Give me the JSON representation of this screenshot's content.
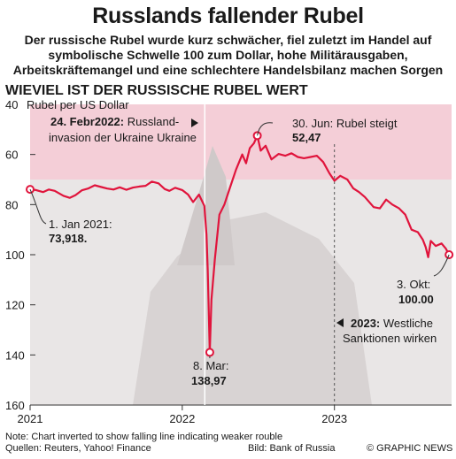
{
  "header": {
    "title": "Russlands fallender Rubel",
    "subtitle_lines": [
      "Der russische Rubel wurde kurz schwächer, fiel zuletzt im Handel auf",
      "symbolische Schwelle 100 zum Dollar, hohe Militärausgaben,",
      "Arbeitskräftemangel und eine schlechtere Handelsbilanz machen Sorgen"
    ],
    "section_label": "WIEVIEL IST DER RUSSISCHE RUBEL WERT"
  },
  "chart_data": {
    "type": "line",
    "ylabel": "Rubel per US Dollar",
    "y_inverted": true,
    "ylim": [
      40,
      160
    ],
    "y_ticks": [
      40,
      60,
      80,
      100,
      120,
      140,
      160
    ],
    "x_range": [
      "2021-01-01",
      "2023-10-09"
    ],
    "x_ticks": [
      "2021",
      "2022",
      "2023"
    ],
    "grid": false,
    "line_color": "#e0143c",
    "band_color": "#f6c9d3",
    "series": [
      {
        "points": [
          [
            "2021-01-01",
            73.9
          ],
          [
            "2021-01-15",
            74.2
          ],
          [
            "2021-02-01",
            75.0
          ],
          [
            "2021-02-15",
            74.0
          ],
          [
            "2021-03-01",
            74.5
          ],
          [
            "2021-03-22",
            76.5
          ],
          [
            "2021-04-06",
            77.3
          ],
          [
            "2021-04-20",
            76.2
          ],
          [
            "2021-05-05",
            74.3
          ],
          [
            "2021-05-20",
            73.6
          ],
          [
            "2021-06-05",
            72.3
          ],
          [
            "2021-06-21",
            73.0
          ],
          [
            "2021-07-05",
            73.6
          ],
          [
            "2021-07-20",
            74.0
          ],
          [
            "2021-08-04",
            73.1
          ],
          [
            "2021-08-20",
            74.1
          ],
          [
            "2021-09-05",
            73.2
          ],
          [
            "2021-09-20",
            72.8
          ],
          [
            "2021-10-05",
            72.5
          ],
          [
            "2021-10-20",
            70.8
          ],
          [
            "2021-11-05",
            71.5
          ],
          [
            "2021-11-20",
            73.8
          ],
          [
            "2021-12-01",
            74.5
          ],
          [
            "2021-12-15",
            73.3
          ],
          [
            "2022-01-01",
            74.2
          ],
          [
            "2022-01-15",
            76.0
          ],
          [
            "2022-01-27",
            79.0
          ],
          [
            "2022-02-10",
            76.0
          ],
          [
            "2022-02-23",
            80.5
          ],
          [
            "2022-02-28",
            92.0
          ],
          [
            "2022-03-03",
            106.0
          ],
          [
            "2022-03-08",
            138.97
          ],
          [
            "2022-03-12",
            118.0
          ],
          [
            "2022-03-20",
            102.0
          ],
          [
            "2022-03-31",
            84.0
          ],
          [
            "2022-04-12",
            80.0
          ],
          [
            "2022-04-25",
            73.5
          ],
          [
            "2022-05-10",
            66.0
          ],
          [
            "2022-05-25",
            60.0
          ],
          [
            "2022-06-03",
            63.5
          ],
          [
            "2022-06-12",
            57.5
          ],
          [
            "2022-06-22",
            55.5
          ],
          [
            "2022-06-30",
            52.47
          ],
          [
            "2022-07-08",
            58.5
          ],
          [
            "2022-07-20",
            56.5
          ],
          [
            "2022-08-03",
            62.0
          ],
          [
            "2022-08-20",
            59.8
          ],
          [
            "2022-09-05",
            60.5
          ],
          [
            "2022-09-20",
            59.5
          ],
          [
            "2022-10-05",
            61.0
          ],
          [
            "2022-10-20",
            61.5
          ],
          [
            "2022-11-05",
            61.0
          ],
          [
            "2022-11-20",
            60.5
          ],
          [
            "2022-12-05",
            63.0
          ],
          [
            "2022-12-20",
            67.5
          ],
          [
            "2023-01-01",
            70.5
          ],
          [
            "2023-01-15",
            68.5
          ],
          [
            "2023-02-01",
            70.0
          ],
          [
            "2023-02-15",
            73.5
          ],
          [
            "2023-03-01",
            75.0
          ],
          [
            "2023-03-15",
            77.0
          ],
          [
            "2023-04-05",
            81.0
          ],
          [
            "2023-04-20",
            81.5
          ],
          [
            "2023-05-05",
            78.0
          ],
          [
            "2023-05-20",
            80.0
          ],
          [
            "2023-06-05",
            81.5
          ],
          [
            "2023-06-20",
            84.0
          ],
          [
            "2023-07-05",
            90.0
          ],
          [
            "2023-07-20",
            91.0
          ],
          [
            "2023-08-01",
            94.0
          ],
          [
            "2023-08-08",
            97.0
          ],
          [
            "2023-08-14",
            101.0
          ],
          [
            "2023-08-20",
            94.5
          ],
          [
            "2023-09-01",
            96.5
          ],
          [
            "2023-09-15",
            95.5
          ],
          [
            "2023-09-25",
            97.5
          ],
          [
            "2023-10-03",
            100.0
          ]
        ]
      }
    ],
    "annotations": [
      {
        "id": "start",
        "date": "2021-01-01",
        "value": 73.918,
        "lines": [
          "1. Jan 2021:",
          "73,918."
        ]
      },
      {
        "id": "invasion",
        "date": "2022-02-24",
        "lines": [
          "24. Febr2022: Russland-",
          "invasion der Ukraine Ukraine"
        ],
        "bold_prefix": "24. Febr2022:",
        "rest": " Russland-"
      },
      {
        "id": "peak",
        "date": "2022-06-30",
        "value": 52.47,
        "lines": [
          "30. Jun: Rubel steigt",
          "52,47"
        ]
      },
      {
        "id": "low",
        "date": "2022-03-08",
        "value": 138.97,
        "lines": [
          "8. Mar:",
          "138,97"
        ]
      },
      {
        "id": "end",
        "date": "2023-10-03",
        "value": 100.0,
        "lines": [
          "3. Okt:",
          "100.00"
        ]
      },
      {
        "id": "sanctions",
        "date": "2023-01-01",
        "bold_prefix": "2023:",
        "rest": " Westliche",
        "lines": [
          "2023: Westliche",
          "Sanktionen wirken"
        ]
      }
    ]
  },
  "footer": {
    "note": "Note: Chart inverted to show falling line indicating weaker rouble",
    "sources": "Quellen: Reuters, Yahoo! Finance",
    "image_credit": "Bild: Bank of Russia",
    "copyright": "© GRAPHIC NEWS"
  }
}
